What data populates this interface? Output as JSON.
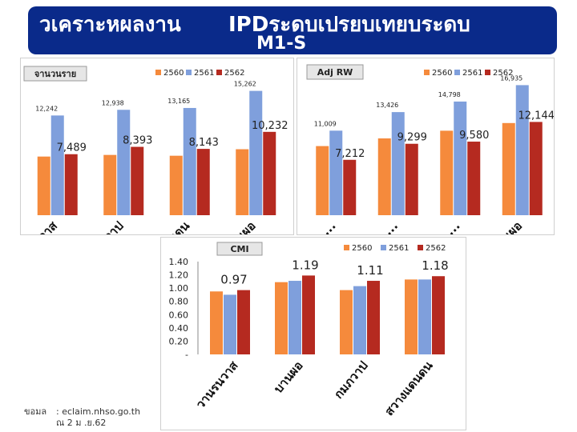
{
  "title": {
    "line1": "วเคราะหผลงาน",
    "line2": "IPDระดบเปรยบเทยบระดบ",
    "line3": "M1-S"
  },
  "colors": {
    "2560": "#f58a3c",
    "2561": "#7f9fdc",
    "2562": "#b52a20",
    "title_bg": "#0a2a8a"
  },
  "source": {
    "label": "ขอมล",
    "text": ": eclaim.nhso.go.th",
    "date": "ณ 2 ม .ย.62"
  },
  "chart_data": [
    {
      "type": "bar",
      "title": "จานวนราย",
      "categories": [
        "วานรนวาส",
        "กมภวาป",
        "สวางแดนดน",
        "บานผอ"
      ],
      "series": [
        {
          "name": "2560",
          "values": [
            7200,
            7400,
            7300,
            8100
          ]
        },
        {
          "name": "2561",
          "values": [
            12242,
            12938,
            13165,
            15262
          ]
        },
        {
          "name": "2562",
          "values": [
            7489,
            8393,
            8143,
            10232
          ]
        }
      ],
      "labels_small": [
        "12,242",
        "12,938",
        "13,165",
        "15,262"
      ],
      "labels_big": [
        "7,489",
        "8,393",
        "8,143",
        "10,232"
      ],
      "legend": "top-right",
      "ylim": [
        0,
        16500
      ]
    },
    {
      "type": "bar",
      "title": "Adj RW",
      "categories": [
        "วานรน ...",
        "กมภวา ...",
        "สวางแ ...",
        "บานผอ"
      ],
      "series": [
        {
          "name": "2560",
          "values": [
            9000,
            10000,
            11000,
            12000
          ]
        },
        {
          "name": "2561",
          "values": [
            11009,
            13426,
            14798,
            16935
          ]
        },
        {
          "name": "2562",
          "values": [
            7212,
            9299,
            9580,
            12144
          ]
        }
      ],
      "labels_small": [
        "11,009",
        "13,426",
        "14,798",
        "16,935"
      ],
      "labels_big": [
        "7,212",
        "9,299",
        "9,580",
        "12,144"
      ],
      "legend": "top-right",
      "ylim": [
        0,
        17500
      ]
    },
    {
      "type": "bar",
      "title": "CMI",
      "categories": [
        "วานรนวาส",
        "บานผอ",
        "กมภวาป",
        "สวางแดนดน"
      ],
      "series": [
        {
          "name": "2560",
          "values": [
            0.95,
            1.09,
            0.97,
            1.13
          ]
        },
        {
          "name": "2561",
          "values": [
            0.9,
            1.11,
            1.03,
            1.13
          ]
        },
        {
          "name": "2562",
          "values": [
            0.97,
            1.19,
            1.11,
            1.18
          ]
        }
      ],
      "value_labels": [
        "0.97",
        "1.19",
        "1.11",
        "1.18"
      ],
      "yticks": [
        "1.40",
        "1.20",
        "1.00",
        "0.80",
        "0.60",
        "0.40",
        "0.20",
        "-"
      ],
      "ylim": [
        0,
        1.4
      ],
      "legend": "top-right"
    }
  ]
}
